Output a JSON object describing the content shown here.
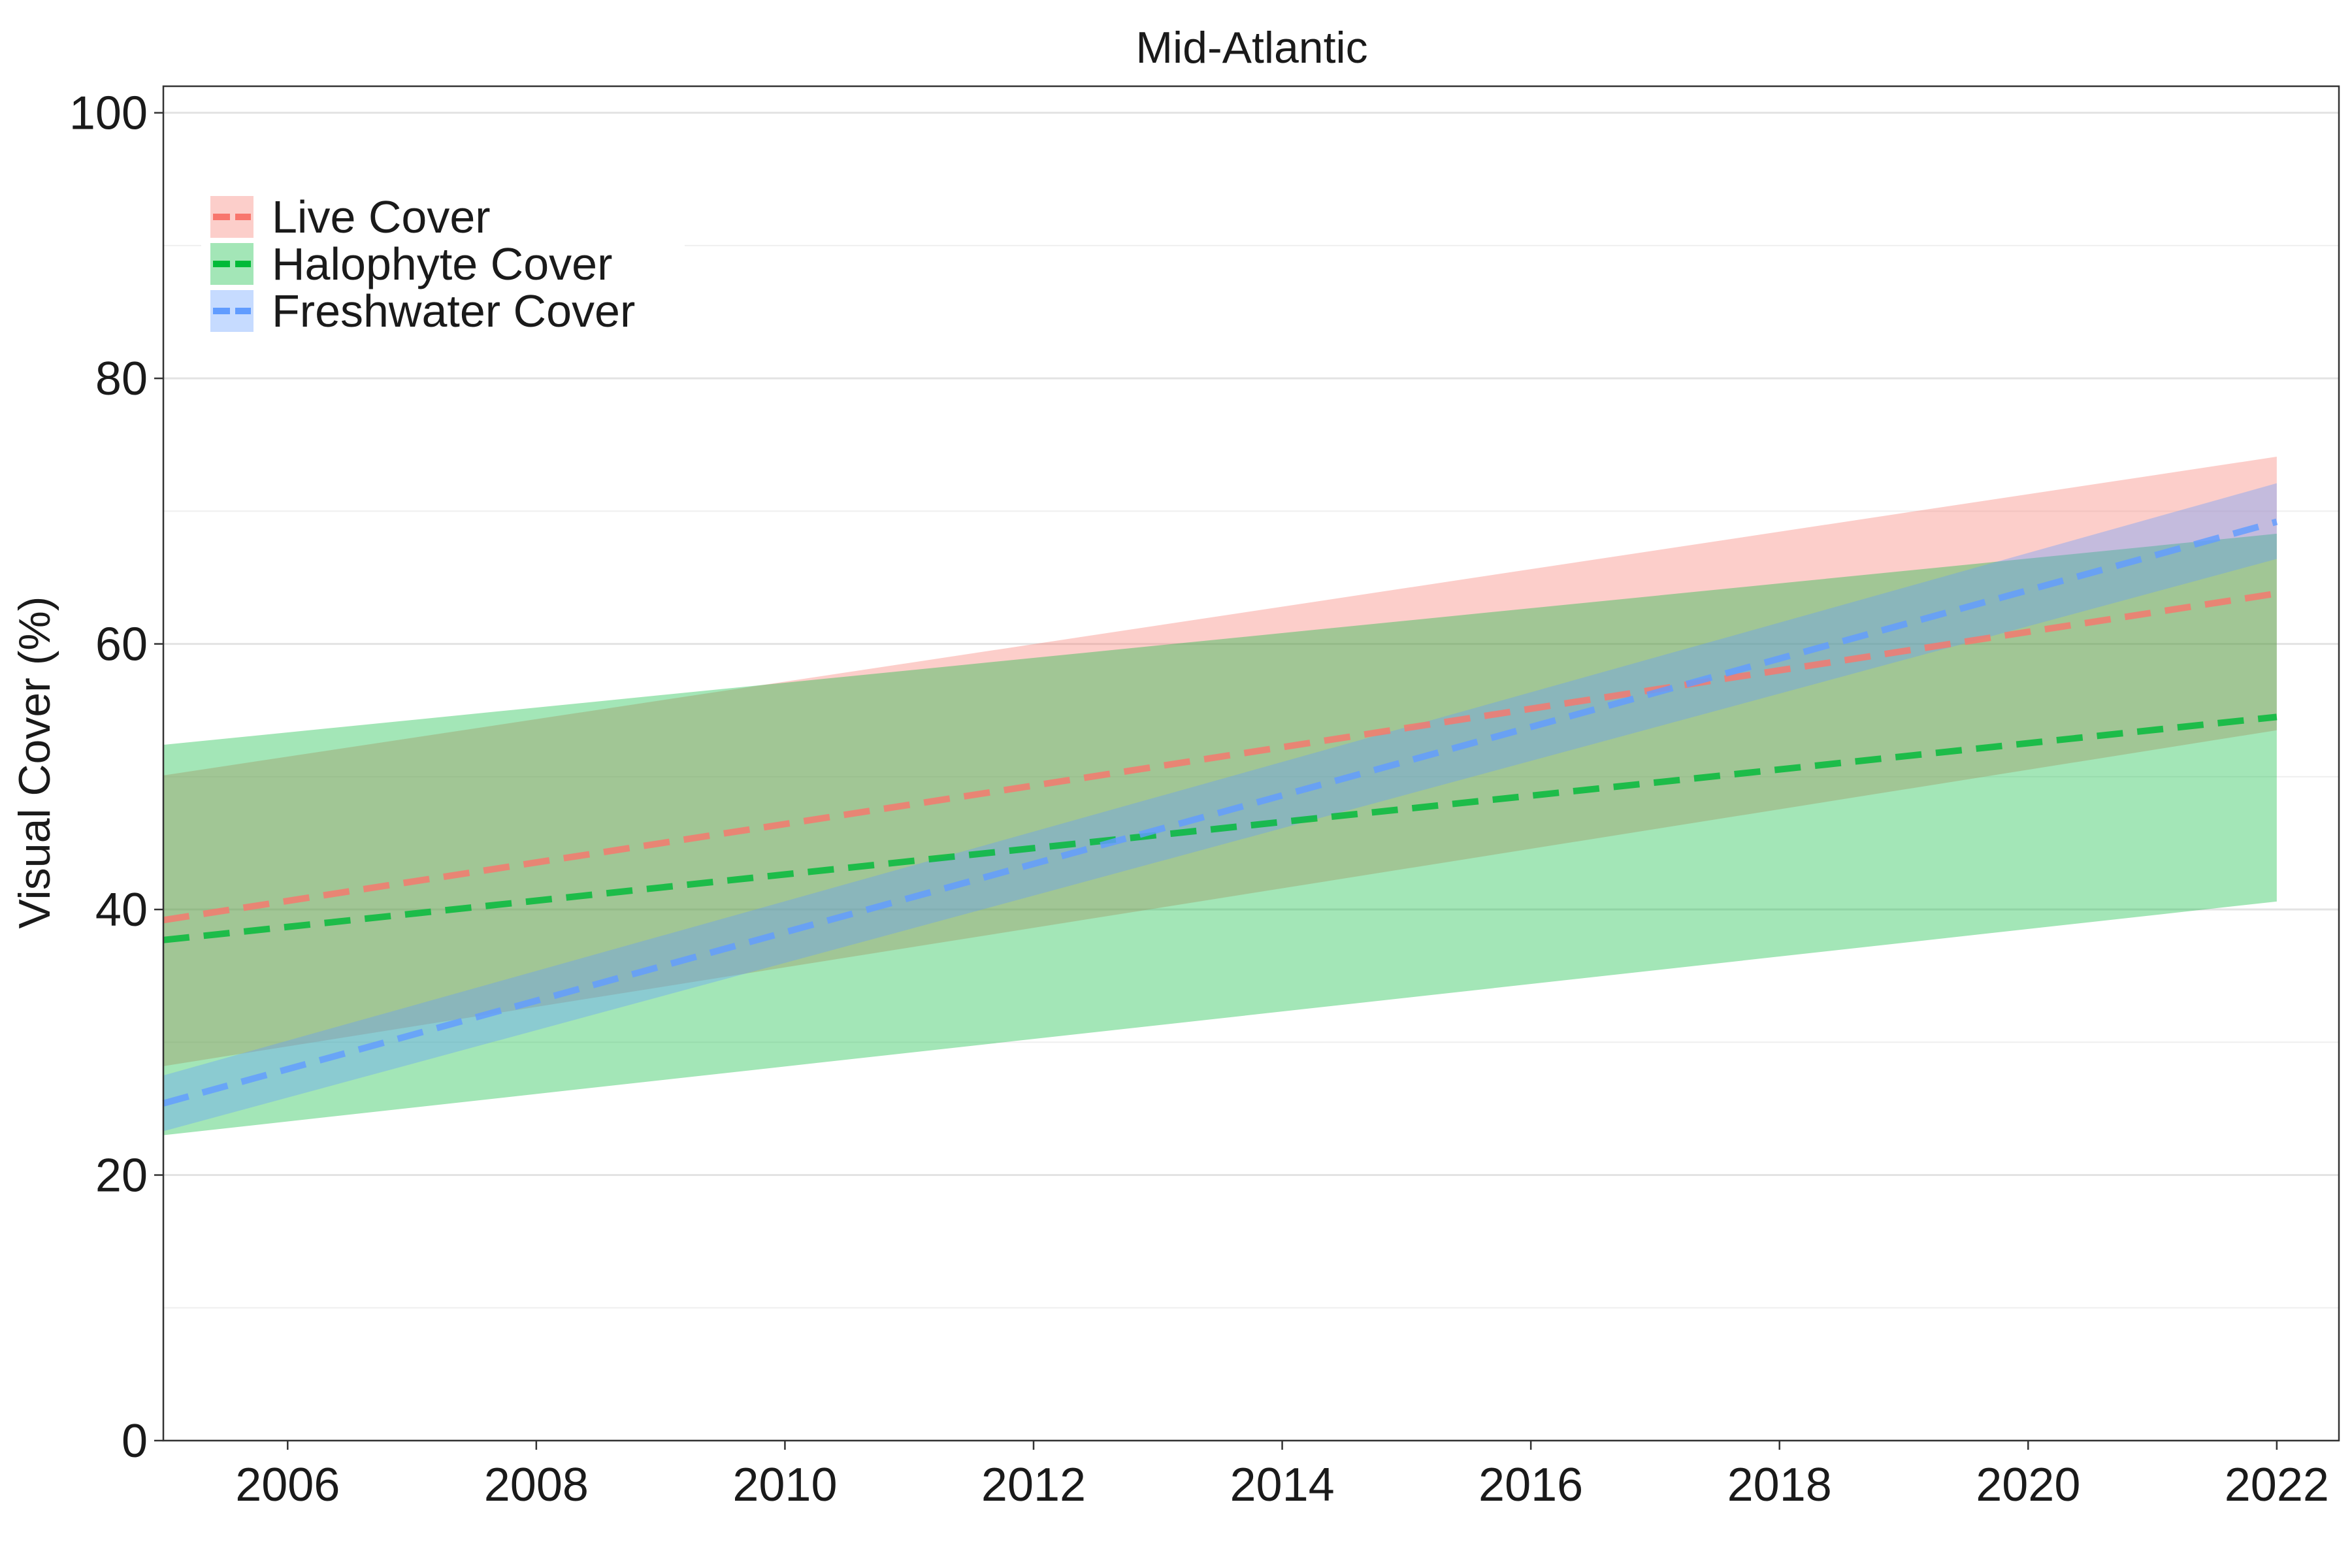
{
  "chart_data": {
    "type": "line",
    "title": "Mid-Atlantic",
    "xlabel": "",
    "ylabel": "Visual Cover (%)",
    "xlim": [
      2005,
      2022.5
    ],
    "ylim": [
      0,
      102
    ],
    "x_ticks": [
      2006,
      2008,
      2010,
      2012,
      2014,
      2016,
      2018,
      2020,
      2022
    ],
    "y_ticks": [
      0,
      20,
      40,
      60,
      80,
      100
    ],
    "grid": true,
    "legend_position": "top-left",
    "series": [
      {
        "name": "Live Cover",
        "color": "#f8766d",
        "fill": "#f8766d",
        "x": [
          2005,
          2022
        ],
        "y": [
          39.2,
          63.8
        ],
        "lower": [
          28.2,
          53.5
        ],
        "upper": [
          50.1,
          74.1
        ]
      },
      {
        "name": "Halophyte Cover",
        "color": "#00ba38",
        "fill": "#00ba38",
        "x": [
          2005,
          2022
        ],
        "y": [
          37.7,
          54.5
        ],
        "lower": [
          23.0,
          40.6
        ],
        "upper": [
          52.4,
          68.3
        ]
      },
      {
        "name": "Freshwater Cover",
        "color": "#619cff",
        "fill": "#619cff",
        "x": [
          2005,
          2022
        ],
        "y": [
          25.4,
          69.2
        ],
        "lower": [
          23.3,
          66.4
        ],
        "upper": [
          27.5,
          72.1
        ]
      }
    ]
  }
}
